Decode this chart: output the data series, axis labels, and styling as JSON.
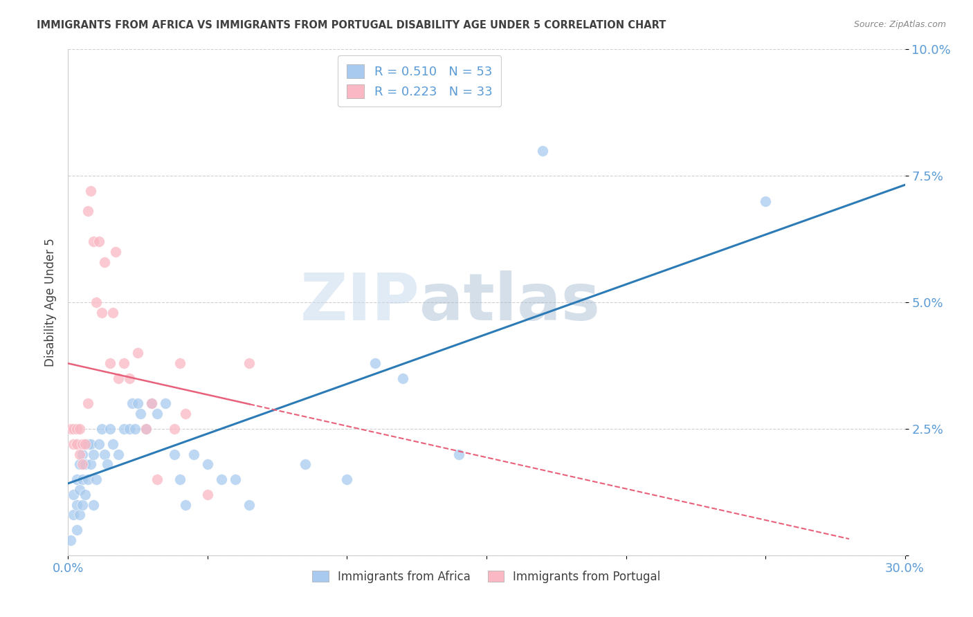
{
  "title": "IMMIGRANTS FROM AFRICA VS IMMIGRANTS FROM PORTUGAL DISABILITY AGE UNDER 5 CORRELATION CHART",
  "source": "Source: ZipAtlas.com",
  "ylabel": "Disability Age Under 5",
  "xmin": 0.0,
  "xmax": 0.3,
  "ymin": 0.0,
  "ymax": 0.1,
  "yticks": [
    0.0,
    0.025,
    0.05,
    0.075,
    0.1
  ],
  "ytick_labels": [
    "",
    "2.5%",
    "5.0%",
    "7.5%",
    "10.0%"
  ],
  "africa_color": "#a8caee",
  "portugal_color": "#f9b8c4",
  "africa_R": 0.51,
  "africa_N": 53,
  "portugal_R": 0.223,
  "portugal_N": 33,
  "africa_scatter": [
    [
      0.001,
      0.003
    ],
    [
      0.002,
      0.008
    ],
    [
      0.002,
      0.012
    ],
    [
      0.003,
      0.005
    ],
    [
      0.003,
      0.01
    ],
    [
      0.003,
      0.015
    ],
    [
      0.004,
      0.008
    ],
    [
      0.004,
      0.013
    ],
    [
      0.004,
      0.018
    ],
    [
      0.005,
      0.01
    ],
    [
      0.005,
      0.015
    ],
    [
      0.005,
      0.02
    ],
    [
      0.006,
      0.012
    ],
    [
      0.006,
      0.018
    ],
    [
      0.007,
      0.015
    ],
    [
      0.007,
      0.022
    ],
    [
      0.008,
      0.018
    ],
    [
      0.008,
      0.022
    ],
    [
      0.009,
      0.01
    ],
    [
      0.009,
      0.02
    ],
    [
      0.01,
      0.015
    ],
    [
      0.011,
      0.022
    ],
    [
      0.012,
      0.025
    ],
    [
      0.013,
      0.02
    ],
    [
      0.014,
      0.018
    ],
    [
      0.015,
      0.025
    ],
    [
      0.016,
      0.022
    ],
    [
      0.018,
      0.02
    ],
    [
      0.02,
      0.025
    ],
    [
      0.022,
      0.025
    ],
    [
      0.023,
      0.03
    ],
    [
      0.024,
      0.025
    ],
    [
      0.025,
      0.03
    ],
    [
      0.026,
      0.028
    ],
    [
      0.028,
      0.025
    ],
    [
      0.03,
      0.03
    ],
    [
      0.032,
      0.028
    ],
    [
      0.035,
      0.03
    ],
    [
      0.038,
      0.02
    ],
    [
      0.04,
      0.015
    ],
    [
      0.042,
      0.01
    ],
    [
      0.045,
      0.02
    ],
    [
      0.05,
      0.018
    ],
    [
      0.055,
      0.015
    ],
    [
      0.06,
      0.015
    ],
    [
      0.065,
      0.01
    ],
    [
      0.085,
      0.018
    ],
    [
      0.1,
      0.015
    ],
    [
      0.11,
      0.038
    ],
    [
      0.12,
      0.035
    ],
    [
      0.14,
      0.02
    ],
    [
      0.17,
      0.08
    ],
    [
      0.25,
      0.07
    ]
  ],
  "portugal_scatter": [
    [
      0.001,
      0.025
    ],
    [
      0.002,
      0.025
    ],
    [
      0.002,
      0.022
    ],
    [
      0.003,
      0.022
    ],
    [
      0.003,
      0.025
    ],
    [
      0.004,
      0.02
    ],
    [
      0.004,
      0.025
    ],
    [
      0.005,
      0.018
    ],
    [
      0.005,
      0.022
    ],
    [
      0.006,
      0.022
    ],
    [
      0.007,
      0.03
    ],
    [
      0.007,
      0.068
    ],
    [
      0.008,
      0.072
    ],
    [
      0.009,
      0.062
    ],
    [
      0.01,
      0.05
    ],
    [
      0.011,
      0.062
    ],
    [
      0.012,
      0.048
    ],
    [
      0.013,
      0.058
    ],
    [
      0.015,
      0.038
    ],
    [
      0.016,
      0.048
    ],
    [
      0.017,
      0.06
    ],
    [
      0.018,
      0.035
    ],
    [
      0.02,
      0.038
    ],
    [
      0.022,
      0.035
    ],
    [
      0.025,
      0.04
    ],
    [
      0.028,
      0.025
    ],
    [
      0.03,
      0.03
    ],
    [
      0.032,
      0.015
    ],
    [
      0.038,
      0.025
    ],
    [
      0.04,
      0.038
    ],
    [
      0.042,
      0.028
    ],
    [
      0.05,
      0.012
    ],
    [
      0.065,
      0.038
    ]
  ],
  "watermark_zip": "ZIP",
  "watermark_atlas": "atlas",
  "africa_line_color": "#2c7bb6",
  "portugal_line_color": "#e8607a",
  "background_color": "#ffffff",
  "grid_color": "#d0d0d0",
  "axis_tick_color": "#5b9bd5",
  "title_color": "#404040",
  "legend_text_color": "#5b9bd5"
}
